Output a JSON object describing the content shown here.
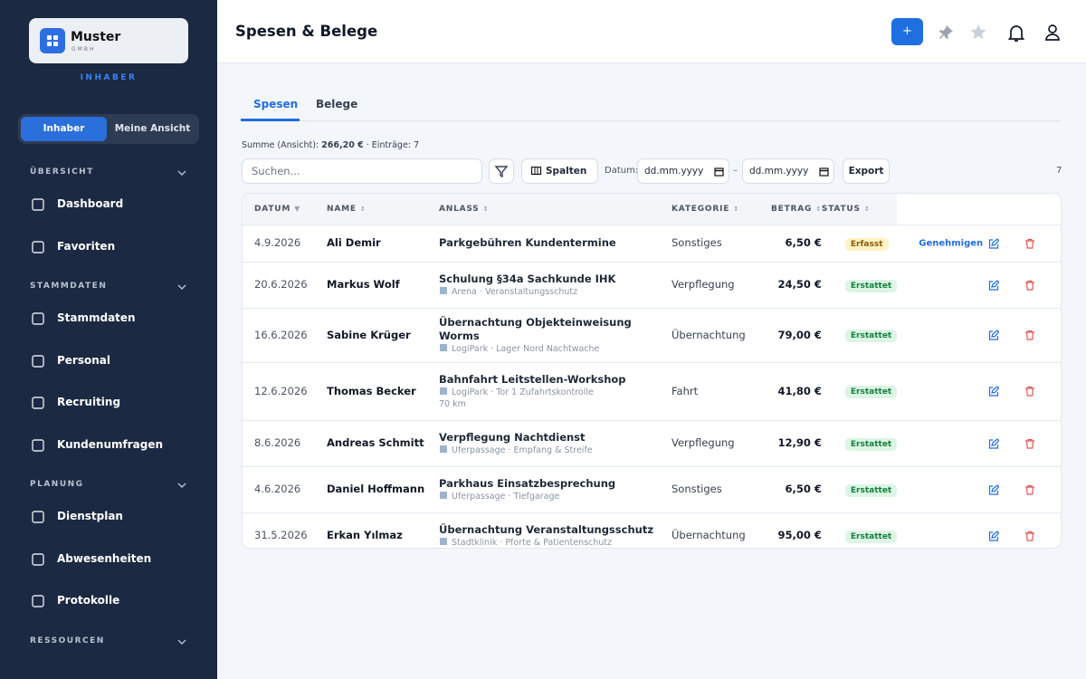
{
  "sidebar": {
    "logo": {
      "name": "Muster",
      "sub": "GMBH"
    },
    "role": "INHABER",
    "toggle": [
      "Inhaber",
      "Meine Ansicht"
    ],
    "sections": [
      {
        "title": "ÜBERSICHT",
        "items": [
          "Dashboard",
          "Favoriten"
        ]
      },
      {
        "title": "STAMMDATEN",
        "items": [
          "Stammdaten",
          "Personal",
          "Recruiting",
          "Kundenumfragen"
        ]
      },
      {
        "title": "PLANUNG",
        "items": [
          "Dienstplan",
          "Abwesenheiten",
          "Protokolle"
        ]
      },
      {
        "title": "RESSOURCEN"
      }
    ]
  },
  "header": {
    "title": "Spesen & Belege",
    "add_button": "+"
  },
  "tabs": [
    "Spesen",
    "Belege"
  ],
  "summary": {
    "label": "Summe (Ansicht):",
    "total": "266,20 €",
    "entries": "· Einträge: 7"
  },
  "toolbar": {
    "search_placeholder": "Suchen...",
    "columns": "Spalten",
    "date_label": "Datum:",
    "date_from": "dd.mm.yyyy",
    "separator": "–",
    "date_to": "dd.mm.yyyy",
    "export": "Export",
    "count": "7"
  },
  "table": {
    "columns": [
      "DATUM",
      "NAME",
      "ANLASS",
      "KATEGORIE",
      "BETRAG",
      "STATUS"
    ],
    "rows": [
      {
        "date": "4.9.2026",
        "name": "Ali Demir",
        "reason": "Parkgebühren Kundentermine",
        "category": "Sonstiges",
        "amount": "6,50 €",
        "status": "Erfasst",
        "action": "Genehmigen"
      },
      {
        "date": "20.6.2026",
        "name": "Markus Wolf",
        "reason": "Schulung §34a Sachkunde IHK",
        "detail": "Arena · Veranstaltungsschutz",
        "category": "Verpflegung",
        "amount": "24,50 €",
        "status": "Erstattet"
      },
      {
        "date": "16.6.2026",
        "name": "Sabine Krüger",
        "reason": "Übernachtung Objekteinweisung Worms",
        "detail": "LogiPark · Lager Nord Nachtwache",
        "category": "Übernachtung",
        "amount": "79,00 €",
        "status": "Erstattet"
      },
      {
        "date": "12.6.2026",
        "name": "Thomas Becker",
        "reason": "Bahnfahrt Leitstellen-Workshop",
        "detail": "LogiPark · Tor 1 Zufahrtskontrolle",
        "extra": "70 km",
        "category": "Fahrt",
        "amount": "41,80 €",
        "status": "Erstattet"
      },
      {
        "date": "8.6.2026",
        "name": "Andreas Schmitt",
        "reason": "Verpflegung Nachtdienst",
        "detail": "Uferpassage · Empfang & Streife",
        "category": "Verpflegung",
        "amount": "12,90 €",
        "status": "Erstattet"
      },
      {
        "date": "4.6.2026",
        "name": "Daniel Hoffmann",
        "reason": "Parkhaus Einsatzbesprechung",
        "detail": "Uferpassage · Tiefgarage",
        "category": "Sonstiges",
        "amount": "6,50 €",
        "status": "Erstattet"
      },
      {
        "date": "31.5.2026",
        "name": "Erkan Yılmaz",
        "reason": "Übernachtung Veranstaltungsschutz",
        "detail": "Stadtklinik · Pforte & Patientenschutz",
        "category": "Übernachtung",
        "amount": "95,00 €",
        "status": "Erstattet"
      }
    ]
  }
}
